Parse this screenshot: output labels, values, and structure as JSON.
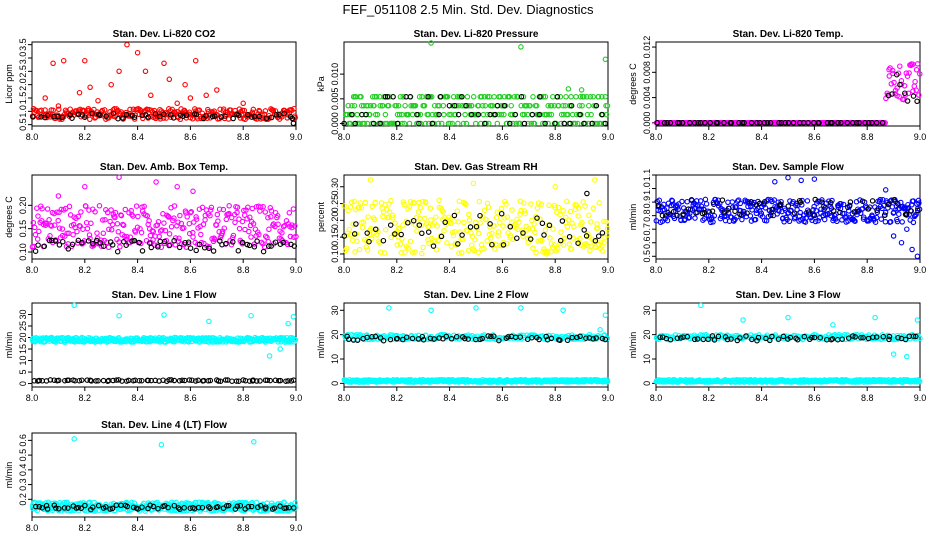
{
  "title": "FEF_051108  2.5 Min. Std. Dev. Diagnostics",
  "colors": {
    "red": "#ff0000",
    "green": "#22cc22",
    "magenta": "#ff00ff",
    "yellow": "#ffff00",
    "blue": "#0000ff",
    "cyan": "#00ffff",
    "black": "#000000"
  },
  "chart_data": [
    {
      "type": "scatter",
      "title": "Stan. Dev. Li-820 CO2",
      "ylabel": "Licor ppm",
      "xlim": [
        8.0,
        9.0
      ],
      "ylim": [
        0.45,
        3.6
      ],
      "xticks": [
        "8.0",
        "8.2",
        "8.4",
        "8.6",
        "8.8",
        "9.0"
      ],
      "yticks": [
        0.5,
        1.0,
        1.5,
        2.0,
        2.5,
        3.0,
        3.5
      ],
      "yticklabels": [
        "0.5",
        "1.0",
        "1.5",
        "2.0",
        "2.5",
        "3.0",
        "3.5"
      ],
      "series": [
        {
          "color": "red",
          "pattern": "band",
          "count": 280,
          "lo": 0.7,
          "hi": 1.1,
          "outliers": [
            [
              8.05,
              1.5
            ],
            [
              8.08,
              2.8
            ],
            [
              8.1,
              1.2
            ],
            [
              8.12,
              2.9
            ],
            [
              8.18,
              1.7
            ],
            [
              8.2,
              2.9
            ],
            [
              8.22,
              1.9
            ],
            [
              8.25,
              1.4
            ],
            [
              8.3,
              2.0
            ],
            [
              8.33,
              2.5
            ],
            [
              8.36,
              3.5
            ],
            [
              8.4,
              3.2
            ],
            [
              8.43,
              2.5
            ],
            [
              8.45,
              1.6
            ],
            [
              8.5,
              2.8
            ],
            [
              8.52,
              2.2
            ],
            [
              8.55,
              1.3
            ],
            [
              8.58,
              2.0
            ],
            [
              8.6,
              1.5
            ],
            [
              8.62,
              2.9
            ],
            [
              8.66,
              1.6
            ],
            [
              8.7,
              1.8
            ],
            [
              8.8,
              1.3
            ]
          ]
        },
        {
          "color": "black",
          "pattern": "band",
          "count": 55,
          "lo": 0.72,
          "hi": 0.92,
          "outliers": [
            [
              8.99,
              0.55
            ]
          ]
        }
      ]
    },
    {
      "type": "scatter",
      "title": "Stan. Dev. Li-820 Pressure",
      "ylabel": "kPa",
      "xlim": [
        8.0,
        9.0
      ],
      "ylim": [
        -0.0005,
        0.0165
      ],
      "xticks": [
        "8.0",
        "8.2",
        "8.4",
        "8.6",
        "8.8",
        "9.0"
      ],
      "yticks": [
        0.0,
        0.005,
        0.01
      ],
      "yticklabels": [
        "0.000",
        "0.005",
        "0.010"
      ],
      "series": [
        {
          "color": "green",
          "pattern": "levels",
          "count": 300,
          "levels": [
            0.0,
            0.0018,
            0.0036,
            0.0054
          ],
          "outliers": [
            [
              8.33,
              0.0163
            ],
            [
              8.67,
              0.0155
            ],
            [
              8.99,
              0.013
            ],
            [
              8.85,
              0.007
            ],
            [
              8.9,
              0.0068
            ]
          ]
        },
        {
          "color": "black",
          "pattern": "levels",
          "count": 50,
          "levels": [
            0.0,
            0.0018,
            0.0036,
            0.0054
          ],
          "outliers": []
        }
      ]
    },
    {
      "type": "scatter",
      "title": "Stan. Dev. Li-820 Temp.",
      "ylabel": "degrees C",
      "xlim": [
        8.0,
        9.0
      ],
      "ylim": [
        -0.0005,
        0.0128
      ],
      "xticks": [
        "8.0",
        "8.2",
        "8.4",
        "8.6",
        "8.8",
        "9.0"
      ],
      "yticks": [
        0.0,
        0.004,
        0.008,
        0.012
      ],
      "yticklabels": [
        "0.000",
        "0.004",
        "0.008",
        "0.012"
      ],
      "series": [
        {
          "color": "magenta",
          "pattern": "step",
          "count": 300,
          "step_x": 8.87,
          "lo": 0.0,
          "hi": 0.0095,
          "jump": 0.0035,
          "outliers": []
        },
        {
          "color": "black",
          "pattern": "step",
          "count": 60,
          "step_x": 8.87,
          "lo": 0.0,
          "hi": 0.0085,
          "jump": 0.003,
          "outliers": []
        }
      ]
    },
    {
      "type": "scatter",
      "title": "Stan. Dev. Amb. Box Temp.",
      "ylabel": "degrees C",
      "xlim": [
        8.0,
        9.0
      ],
      "ylim": [
        0.085,
        0.265
      ],
      "xticks": [
        "8.0",
        "8.2",
        "8.4",
        "8.6",
        "8.8",
        "9.0"
      ],
      "yticks": [
        0.1,
        0.15,
        0.2
      ],
      "yticklabels": [
        "0.10",
        "0.15",
        "0.20"
      ],
      "series": [
        {
          "color": "magenta",
          "pattern": "band",
          "count": 320,
          "lo": 0.11,
          "hi": 0.2,
          "outliers": [
            [
              8.33,
              0.26
            ],
            [
              8.55,
              0.24
            ],
            [
              8.2,
              0.24
            ],
            [
              8.47,
              0.25
            ],
            [
              8.61,
              0.23
            ],
            [
              8.1,
              0.22
            ]
          ]
        },
        {
          "color": "black",
          "pattern": "band",
          "count": 60,
          "lo": 0.1,
          "hi": 0.125,
          "outliers": []
        }
      ]
    },
    {
      "type": "scatter",
      "title": "Stan. Dev. Gas Stream RH",
      "ylabel": "percent",
      "xlim": [
        8.0,
        9.0
      ],
      "ylim": [
        0.085,
        0.335
      ],
      "xticks": [
        "8.0",
        "8.2",
        "8.4",
        "8.6",
        "8.8",
        "9.0"
      ],
      "yticks": [
        0.1,
        0.15,
        0.2,
        0.25,
        0.3
      ],
      "yticklabels": [
        "0.10",
        "0.15",
        "0.20",
        "0.25",
        "0.30"
      ],
      "series": [
        {
          "color": "yellow",
          "pattern": "band",
          "count": 330,
          "lo": 0.1,
          "hi": 0.26,
          "outliers": [
            [
              8.1,
              0.32
            ],
            [
              8.49,
              0.31
            ],
            [
              8.95,
              0.32
            ],
            [
              8.8,
              0.3
            ]
          ]
        },
        {
          "color": "black",
          "pattern": "band",
          "count": 45,
          "lo": 0.12,
          "hi": 0.22,
          "outliers": [
            [
              8.92,
              0.28
            ]
          ]
        }
      ]
    },
    {
      "type": "scatter",
      "title": "Stan. Dev. Sample Flow",
      "ylabel": "ml/min",
      "xlim": [
        8.0,
        9.0
      ],
      "ylim": [
        0.48,
        1.1
      ],
      "xticks": [
        "8.0",
        "8.2",
        "8.4",
        "8.6",
        "8.8",
        "9.0"
      ],
      "yticks": [
        0.5,
        0.6,
        0.7,
        0.8,
        0.9,
        1.0,
        1.1
      ],
      "yticklabels": [
        "0.5",
        "0.6",
        "0.7",
        "0.8",
        "0.9",
        "1.0",
        "1.1"
      ],
      "series": [
        {
          "color": "blue",
          "pattern": "band",
          "count": 360,
          "lo": 0.75,
          "hi": 0.92,
          "outliers": [
            [
              8.45,
              1.05
            ],
            [
              8.5,
              1.08
            ],
            [
              8.55,
              1.06
            ],
            [
              8.6,
              1.07
            ],
            [
              8.87,
              0.99
            ],
            [
              8.9,
              0.65
            ],
            [
              8.93,
              0.6
            ],
            [
              8.97,
              0.55
            ],
            [
              8.99,
              0.5
            ],
            [
              8.95,
              0.7
            ]
          ]
        },
        {
          "color": "black",
          "pattern": "band",
          "count": 55,
          "lo": 0.8,
          "hi": 0.92,
          "outliers": []
        }
      ]
    },
    {
      "type": "scatter",
      "title": "Stan. Dev. Line 1 Flow",
      "ylabel": "ml/min",
      "xlim": [
        8.0,
        9.0
      ],
      "ylim": [
        -1.5,
        35
      ],
      "xticks": [
        "8.0",
        "8.2",
        "8.4",
        "8.6",
        "8.8",
        "9.0"
      ],
      "yticks": [
        0,
        5,
        10,
        15,
        20,
        25,
        30
      ],
      "yticklabels": [
        "0",
        "5",
        "10",
        "15",
        "20",
        "25",
        "30"
      ],
      "series": [
        {
          "color": "cyan",
          "pattern": "band",
          "count": 400,
          "lo": 18,
          "hi": 20,
          "outliers": [
            [
              8.16,
              34
            ],
            [
              8.33,
              29.5
            ],
            [
              8.5,
              29.8
            ],
            [
              8.67,
              27
            ],
            [
              8.83,
              29.5
            ],
            [
              8.9,
              12
            ],
            [
              8.94,
              15
            ],
            [
              8.97,
              26
            ],
            [
              8.99,
              29
            ]
          ]
        },
        {
          "color": "black",
          "pattern": "band",
          "count": 80,
          "lo": 1,
          "hi": 1.6,
          "outliers": []
        }
      ]
    },
    {
      "type": "scatter",
      "title": "Stan. Dev. Line 2 Flow",
      "ylabel": "ml/min",
      "xlim": [
        8.0,
        9.0
      ],
      "ylim": [
        -1.5,
        33
      ],
      "xticks": [
        "8.0",
        "8.2",
        "8.4",
        "8.6",
        "8.8",
        "9.0"
      ],
      "yticks": [
        0,
        10,
        20,
        30
      ],
      "yticklabels": [
        "0",
        "10",
        "20",
        "30"
      ],
      "series": [
        {
          "color": "cyan",
          "pattern": "band",
          "count": 400,
          "lo": 0.5,
          "hi": 1.5,
          "outliers": [
            [
              8.17,
              31
            ],
            [
              8.33,
              30
            ],
            [
              8.5,
              31
            ],
            [
              8.67,
              31
            ],
            [
              8.83,
              30
            ],
            [
              8.97,
              22
            ],
            [
              8.99,
              28
            ]
          ]
        },
        {
          "color": "cyan",
          "pattern": "band",
          "count": 200,
          "lo": 18,
          "hi": 20,
          "outliers": []
        },
        {
          "color": "black",
          "pattern": "band",
          "count": 60,
          "lo": 17.5,
          "hi": 19.5,
          "outliers": []
        }
      ]
    },
    {
      "type": "scatter",
      "title": "Stan. Dev. Line 3 Flow",
      "ylabel": "ml/min",
      "xlim": [
        8.0,
        9.0
      ],
      "ylim": [
        -1.5,
        33
      ],
      "xticks": [
        "8.0",
        "8.2",
        "8.4",
        "8.6",
        "8.8",
        "9.0"
      ],
      "yticks": [
        0,
        10,
        20,
        30
      ],
      "yticklabels": [
        "0",
        "10",
        "20",
        "30"
      ],
      "series": [
        {
          "color": "cyan",
          "pattern": "band",
          "count": 400,
          "lo": 0.5,
          "hi": 1.5,
          "outliers": [
            [
              8.17,
              32
            ],
            [
              8.33,
              26
            ],
            [
              8.5,
              27
            ],
            [
              8.67,
              24
            ],
            [
              8.83,
              27
            ],
            [
              8.9,
              12
            ],
            [
              8.95,
              11
            ],
            [
              8.97,
              20
            ],
            [
              8.99,
              26
            ]
          ]
        },
        {
          "color": "cyan",
          "pattern": "band",
          "count": 200,
          "lo": 18,
          "hi": 20,
          "outliers": []
        },
        {
          "color": "black",
          "pattern": "band",
          "count": 60,
          "lo": 17.5,
          "hi": 19.5,
          "outliers": []
        }
      ]
    },
    {
      "type": "scatter",
      "title": "Stan. Dev. Line 4 (LT) Flow",
      "ylabel": "ml/min",
      "xlim": [
        8.0,
        9.0
      ],
      "ylim": [
        0.08,
        0.65
      ],
      "xticks": [
        "8.0",
        "8.2",
        "8.4",
        "8.6",
        "8.8",
        "9.0"
      ],
      "yticks": [
        0.2,
        0.3,
        0.4,
        0.5,
        0.6
      ],
      "yticklabels": [
        "0.2",
        "0.3",
        "0.4",
        "0.5",
        "0.6"
      ],
      "series": [
        {
          "color": "cyan",
          "pattern": "band",
          "count": 420,
          "lo": 0.12,
          "hi": 0.18,
          "outliers": [
            [
              8.16,
              0.61
            ],
            [
              8.49,
              0.57
            ],
            [
              8.84,
              0.59
            ]
          ]
        },
        {
          "color": "black",
          "pattern": "band",
          "count": 70,
          "lo": 0.13,
          "hi": 0.16,
          "outliers": []
        }
      ]
    }
  ]
}
